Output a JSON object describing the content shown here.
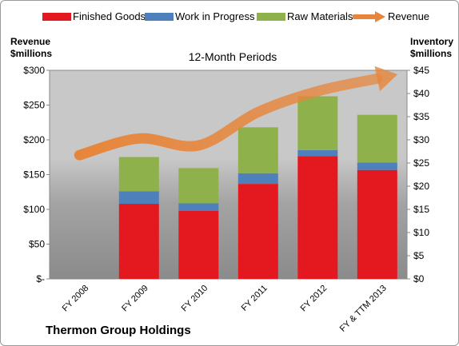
{
  "legend": {
    "finished_goods": "Finished Goods",
    "work_in_progress": "Work in Progress",
    "raw_materials": "Raw Materials",
    "revenue": "Revenue"
  },
  "axes": {
    "left_title_line1": "Revenue",
    "left_title_line2": "$millions",
    "right_title_line1": "Inventory",
    "right_title_line2": "$millions"
  },
  "chart_title": "12-Month Periods",
  "footer_title": "Thermon Group Holdings",
  "chart_data": {
    "type": "bar",
    "stacked": true,
    "title": "12-Month Periods",
    "categories": [
      "FY 2008",
      "FY 2009",
      "FY 2010",
      "FY 2011",
      "FY 2012",
      "FY & TTM 2013"
    ],
    "left_axis": {
      "title": "Revenue $millions",
      "range": [
        0,
        300
      ],
      "ticks": [
        0,
        50,
        100,
        150,
        200,
        250,
        300
      ],
      "tick_labels": [
        "$-",
        "$50",
        "$100",
        "$150",
        "$200",
        "$250",
        "$300"
      ]
    },
    "right_axis": {
      "title": "Inventory $millions",
      "range": [
        0,
        45
      ],
      "ticks": [
        0,
        5,
        10,
        15,
        20,
        25,
        30,
        35,
        40,
        45
      ],
      "tick_labels": [
        "$0",
        "$5",
        "$10",
        "$15",
        "$20",
        "$25",
        "$30",
        "$35",
        "$40",
        "$45"
      ]
    },
    "series": [
      {
        "name": "Finished Goods",
        "axis": "right",
        "color": "#e3191f",
        "values": [
          0,
          16.2,
          14.7,
          20.5,
          26.5,
          23.5
        ]
      },
      {
        "name": "Work in Progress",
        "axis": "right",
        "color": "#4e80bc",
        "values": [
          0,
          2.7,
          1.6,
          2.3,
          1.3,
          1.6
        ]
      },
      {
        "name": "Raw Materials",
        "axis": "right",
        "color": "#8fb14b",
        "values": [
          0,
          7.4,
          7.6,
          9.9,
          11.6,
          10.3
        ]
      },
      {
        "name": "Revenue",
        "axis": "left",
        "type": "line",
        "color": "#e7863b",
        "values": [
          178,
          202,
          192,
          240,
          270,
          288
        ]
      }
    ],
    "grid": false,
    "legend_position": "top"
  }
}
